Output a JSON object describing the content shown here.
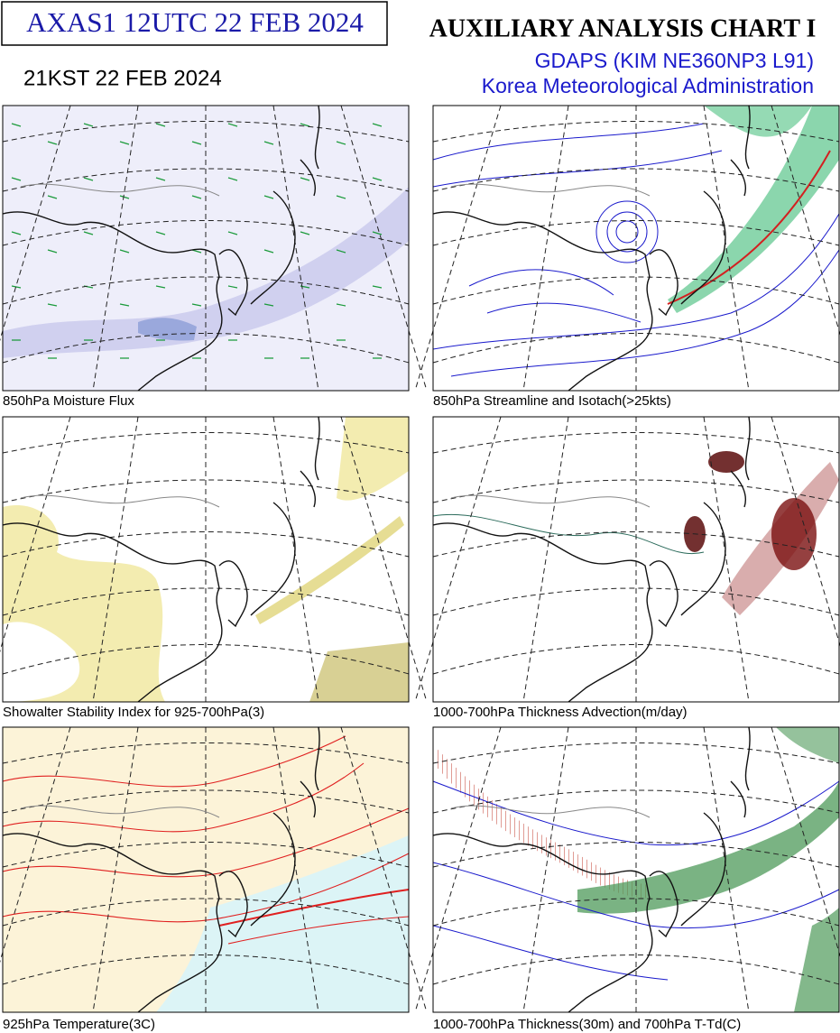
{
  "header": {
    "code": "AXAS1  12UTC 22 FEB 2024",
    "local_time": "21KST 22 FEB 2024",
    "title": "AUXILIARY ANALYSIS CHART  I",
    "model": "GDAPS (KIM NE360NP3 L91)",
    "agency": "Korea Meteorological Administration"
  },
  "panels": [
    {
      "caption": "850hPa Moisture Flux"
    },
    {
      "caption": "850hPa Streamline and Isotach(>25kts)"
    },
    {
      "caption": "Showalter Stability Index for 925-700hPa(3)"
    },
    {
      "caption": "1000-700hPa Thickness Advection(m/day)"
    },
    {
      "caption": "925hPa Temperature(3C)"
    },
    {
      "caption": "1000-700hPa Thickness(30m) and 700hPa T-Td(C)"
    }
  ]
}
